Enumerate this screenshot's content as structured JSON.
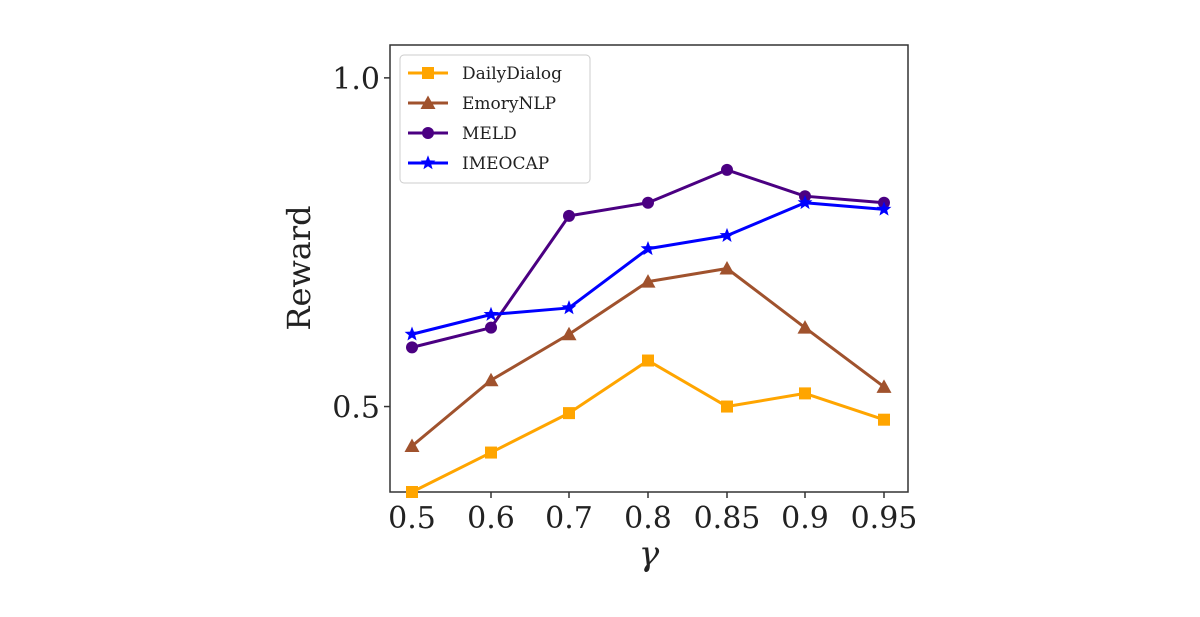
{
  "chart_data": {
    "type": "line",
    "title": "",
    "xlabel": "γ",
    "ylabel": "Reward",
    "categories": [
      "0.5",
      "0.6",
      "0.7",
      "0.8",
      "0.85",
      "0.9",
      "0.95"
    ],
    "ylim": [
      0.37,
      1.05
    ],
    "yticks": [
      "0.5",
      "1.0"
    ],
    "ytick_values": [
      0.5,
      1.0
    ],
    "grid": false,
    "legend_position": "top-left",
    "series": [
      {
        "name": "DailyDialog",
        "color": "#FFA500",
        "marker": "square",
        "values": [
          0.37,
          0.43,
          0.49,
          0.57,
          0.5,
          0.52,
          0.48
        ]
      },
      {
        "name": "EmoryNLP",
        "color": "#A0522D",
        "marker": "triangle",
        "values": [
          0.44,
          0.54,
          0.61,
          0.69,
          0.71,
          0.62,
          0.53
        ]
      },
      {
        "name": "MELD",
        "color": "#4B0082",
        "marker": "circle",
        "values": [
          0.59,
          0.62,
          0.79,
          0.81,
          0.86,
          0.82,
          0.81
        ]
      },
      {
        "name": "IMEOCAP",
        "color": "#0000FF",
        "marker": "star",
        "values": [
          0.61,
          0.64,
          0.65,
          0.74,
          0.76,
          0.81,
          0.8
        ]
      }
    ]
  }
}
